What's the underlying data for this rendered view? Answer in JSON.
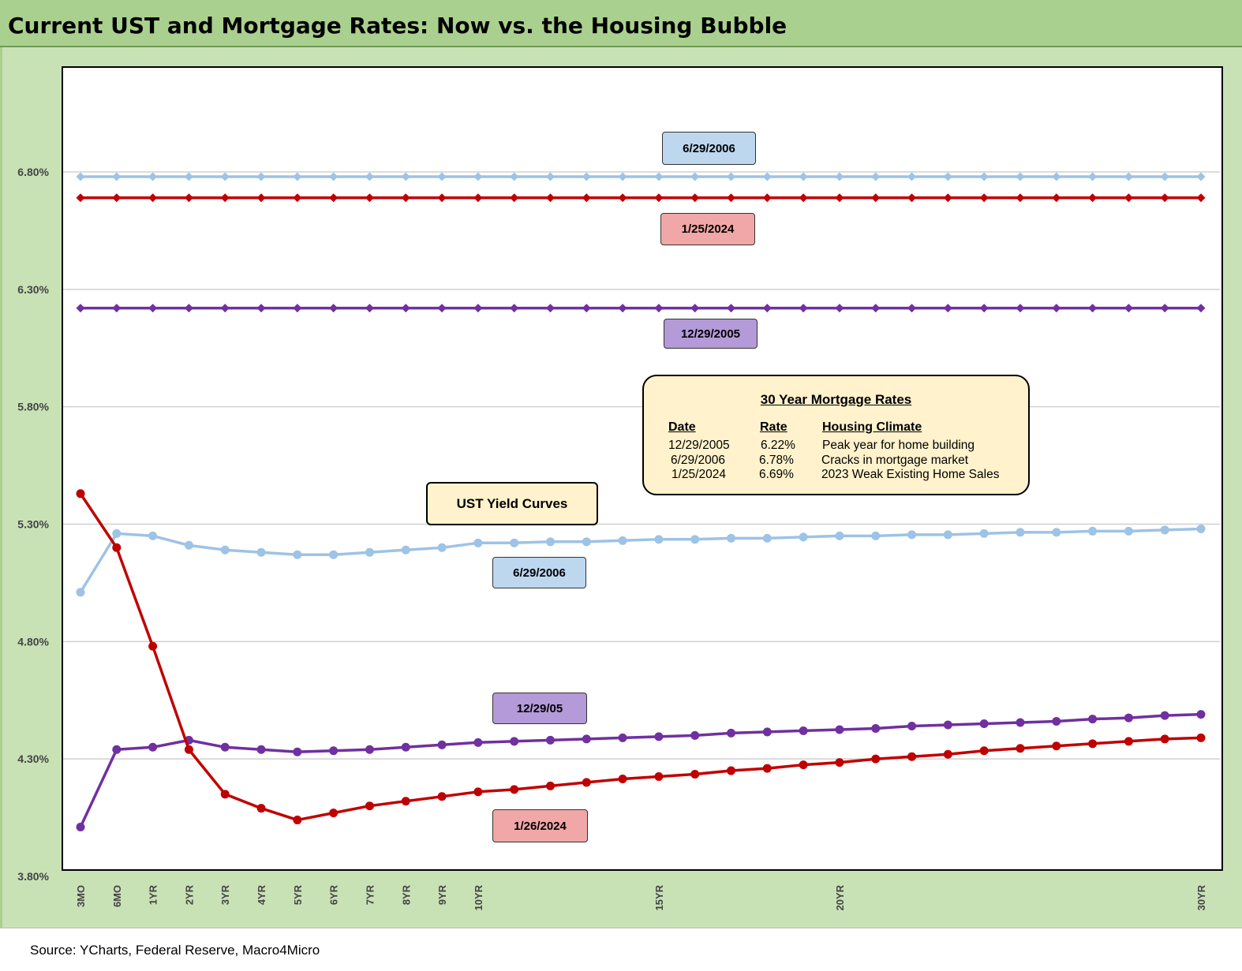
{
  "header": {
    "title": "Current UST and Mortgage Rates: Now vs. the Housing Bubble"
  },
  "chart_data": {
    "type": "line",
    "title": "Current UST and Mortgage Rates: Now vs. the Housing Bubble",
    "xlabel": "",
    "ylabel": "",
    "ylim": [
      3.8,
      7.0
    ],
    "y_ticks": [
      "3.80%",
      "4.30%",
      "4.80%",
      "5.30%",
      "5.80%",
      "6.30%",
      "6.80%"
    ],
    "grid": "horizontal",
    "tenors_years": [
      0.25,
      0.5,
      1,
      2,
      3,
      4,
      5,
      6,
      7,
      8,
      9,
      10,
      11,
      12,
      13,
      14,
      15,
      16,
      17,
      18,
      19,
      20,
      21,
      22,
      23,
      24,
      25,
      26,
      27,
      28,
      29,
      30
    ],
    "x_tick_labels": [
      "3MO",
      "6MO",
      "1YR",
      "2YR",
      "3YR",
      "4YR",
      "5YR",
      "6YR",
      "7YR",
      "8YR",
      "9YR",
      "10YR",
      "",
      "",
      "",
      "",
      "15YR",
      "",
      "",
      "",
      "",
      "20YR",
      "",
      "",
      "",
      "",
      "",
      "",
      "",
      "",
      "",
      "30YR"
    ],
    "series": [
      {
        "key": "mortgage_2006",
        "color": "#9dc3e6",
        "marker": "diamond",
        "width": 3.5,
        "values": [
          6.78,
          6.78,
          6.78,
          6.78,
          6.78,
          6.78,
          6.78,
          6.78,
          6.78,
          6.78,
          6.78,
          6.78,
          6.78,
          6.78,
          6.78,
          6.78,
          6.78,
          6.78,
          6.78,
          6.78,
          6.78,
          6.78,
          6.78,
          6.78,
          6.78,
          6.78,
          6.78,
          6.78,
          6.78,
          6.78,
          6.78,
          6.78
        ]
      },
      {
        "key": "mortgage_2024",
        "color": "#c00000",
        "marker": "diamond",
        "width": 3.5,
        "values": [
          6.69,
          6.69,
          6.69,
          6.69,
          6.69,
          6.69,
          6.69,
          6.69,
          6.69,
          6.69,
          6.69,
          6.69,
          6.69,
          6.69,
          6.69,
          6.69,
          6.69,
          6.69,
          6.69,
          6.69,
          6.69,
          6.69,
          6.69,
          6.69,
          6.69,
          6.69,
          6.69,
          6.69,
          6.69,
          6.69,
          6.69,
          6.69
        ]
      },
      {
        "key": "mortgage_2005",
        "color": "#7030a0",
        "marker": "diamond",
        "width": 3.5,
        "values": [
          6.22,
          6.22,
          6.22,
          6.22,
          6.22,
          6.22,
          6.22,
          6.22,
          6.22,
          6.22,
          6.22,
          6.22,
          6.22,
          6.22,
          6.22,
          6.22,
          6.22,
          6.22,
          6.22,
          6.22,
          6.22,
          6.22,
          6.22,
          6.22,
          6.22,
          6.22,
          6.22,
          6.22,
          6.22,
          6.22,
          6.22,
          6.22
        ]
      },
      {
        "key": "ust_2006",
        "color": "#9dc3e6",
        "marker": "circle",
        "width": 3.5,
        "values": [
          5.01,
          5.26,
          5.25,
          5.21,
          5.19,
          5.18,
          5.17,
          5.17,
          5.18,
          5.19,
          5.2,
          5.22,
          5.22,
          5.225,
          5.225,
          5.23,
          5.235,
          5.235,
          5.24,
          5.24,
          5.245,
          5.25,
          5.25,
          5.255,
          5.255,
          5.26,
          5.265,
          5.265,
          5.27,
          5.27,
          5.275,
          5.28
        ]
      },
      {
        "key": "ust_2005",
        "color": "#7030a0",
        "marker": "circle",
        "width": 3.5,
        "values": [
          4.01,
          4.34,
          4.35,
          4.38,
          4.35,
          4.34,
          4.33,
          4.335,
          4.34,
          4.35,
          4.36,
          4.37,
          4.375,
          4.38,
          4.385,
          4.39,
          4.395,
          4.4,
          4.41,
          4.415,
          4.42,
          4.425,
          4.43,
          4.44,
          4.445,
          4.45,
          4.455,
          4.46,
          4.47,
          4.475,
          4.485,
          4.49
        ]
      },
      {
        "key": "ust_2024",
        "color": "#c00000",
        "marker": "circle",
        "width": 3.5,
        "values": [
          5.43,
          5.2,
          4.78,
          4.34,
          4.15,
          4.09,
          4.04,
          4.07,
          4.1,
          4.12,
          4.14,
          4.16,
          4.17,
          4.185,
          4.2,
          4.215,
          4.225,
          4.235,
          4.25,
          4.26,
          4.275,
          4.285,
          4.3,
          4.31,
          4.32,
          4.335,
          4.345,
          4.355,
          4.365,
          4.375,
          4.385,
          4.39
        ]
      }
    ]
  },
  "labels": {
    "mortgage_2006": "6/29/2006",
    "mortgage_2024": "1/25/2024",
    "mortgage_2005": "12/29/2005",
    "ust_curves": "UST Yield Curves",
    "ust_2006": "6/29/2006",
    "ust_2005": "12/29/05",
    "ust_2024": "1/26/2024"
  },
  "mortgage_table": {
    "title": "30 Year Mortgage Rates",
    "headers": [
      "Date",
      "Rate",
      "Housing Climate"
    ],
    "rows": [
      [
        "12/29/2005",
        "6.22%",
        "Peak year for home building"
      ],
      [
        "6/29/2006",
        "6.78%",
        "Cracks in mortgage market"
      ],
      [
        "1/25/2024",
        "6.69%",
        "2023 Weak Existing Home Sales"
      ]
    ]
  },
  "footer": {
    "source": "Source: YCharts, Federal Reserve, Macro4Micro"
  }
}
